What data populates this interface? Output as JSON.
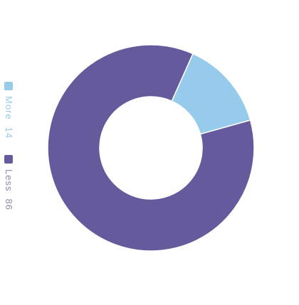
{
  "chart_data": {
    "type": "donut",
    "categories": [
      "More",
      "Less"
    ],
    "values": [
      14,
      86
    ],
    "colors": [
      "#97cbec",
      "#655a9c"
    ],
    "start_angle": 24
  }
}
